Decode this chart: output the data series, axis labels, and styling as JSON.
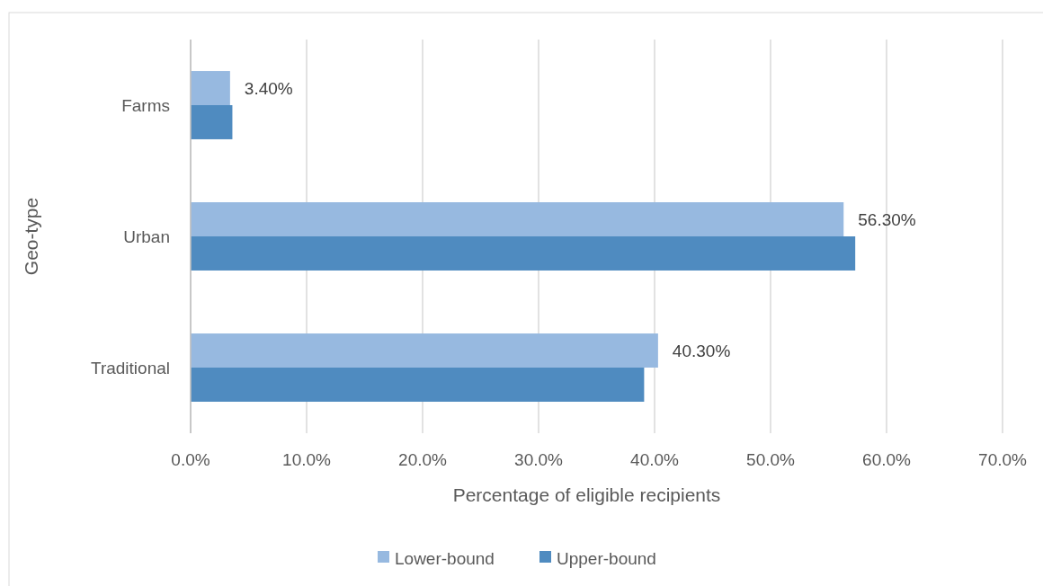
{
  "chart_data": {
    "type": "bar",
    "orientation": "horizontal",
    "xlabel": "Percentage of eligible recipients",
    "ylabel": "Geo-type",
    "categories": [
      "Farms",
      "Urban",
      "Traditional"
    ],
    "series": [
      {
        "name": "Lower-bound",
        "color": "#97b9e0",
        "values": [
          3.4,
          56.3,
          40.3
        ],
        "value_labels": [
          "3.40%",
          "56.30%",
          "40.30%"
        ]
      },
      {
        "name": "Upper-bound",
        "color": "#4f8bc0",
        "values": [
          3.6,
          57.3,
          39.1
        ]
      }
    ],
    "xlim": [
      0,
      70
    ],
    "xticks": [
      {
        "value": 0,
        "label": "0.0%"
      },
      {
        "value": 10,
        "label": "10.0%"
      },
      {
        "value": 20,
        "label": "20.0%"
      },
      {
        "value": 30,
        "label": "30.0%"
      },
      {
        "value": 40,
        "label": "40.0%"
      },
      {
        "value": 50,
        "label": "50.0%"
      },
      {
        "value": 60,
        "label": "60.0%"
      },
      {
        "value": 70,
        "label": "70.0%"
      }
    ],
    "grid": "x",
    "legend": "bottom"
  }
}
